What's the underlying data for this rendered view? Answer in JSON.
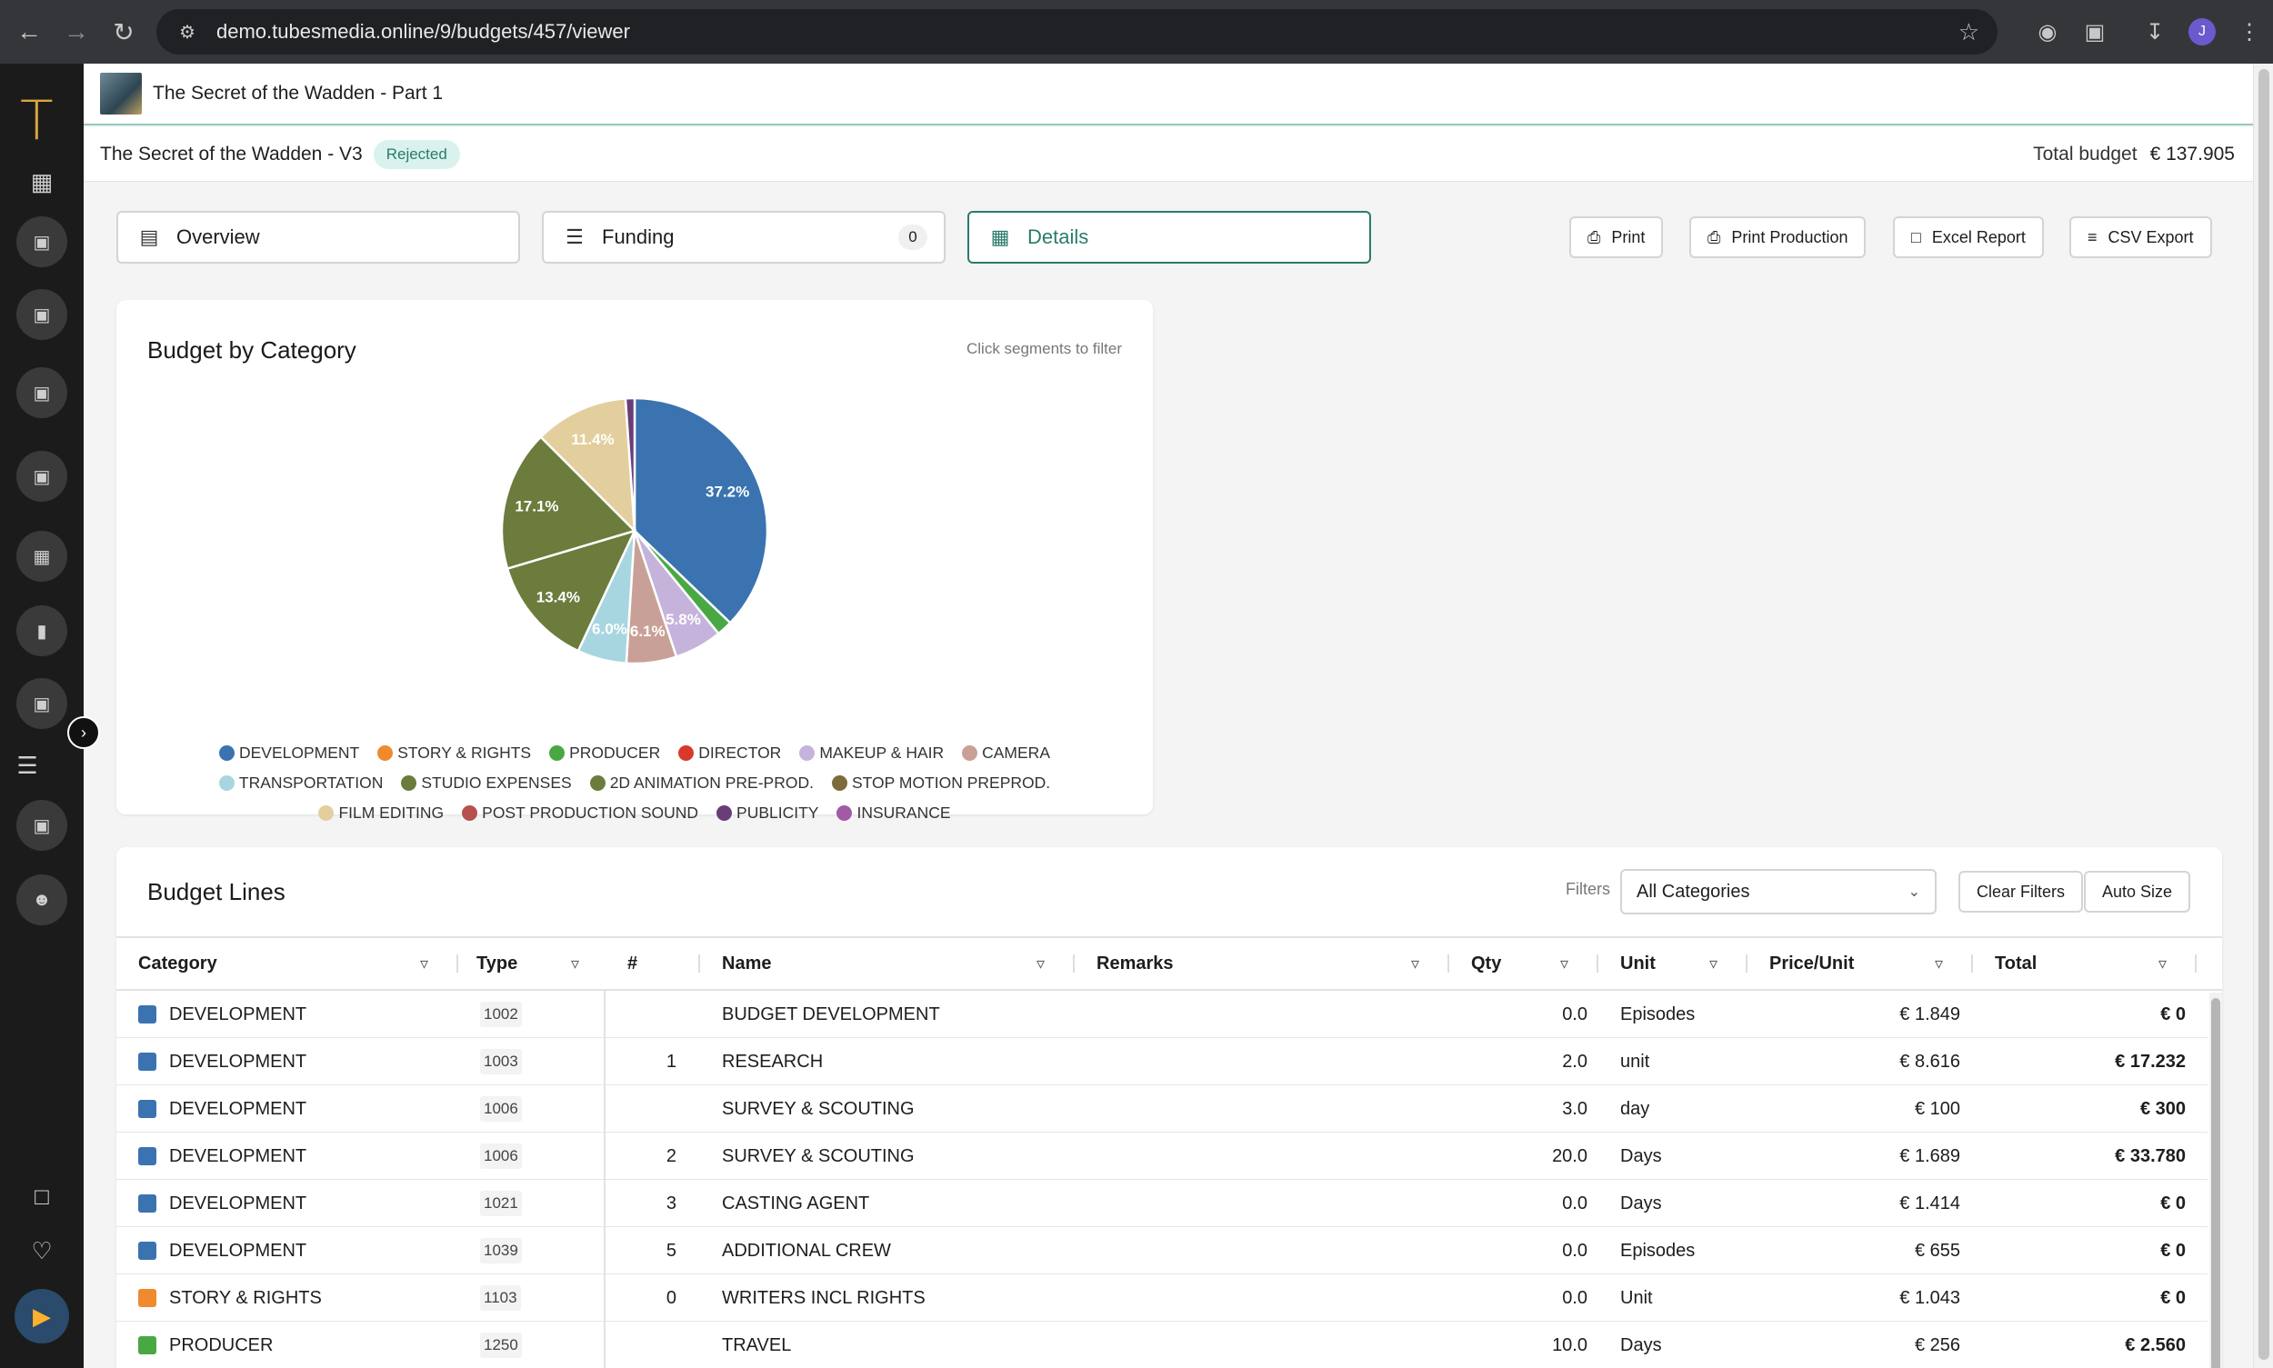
{
  "browser": {
    "url": "demo.tubesmedia.online/9/budgets/457/viewer",
    "profile_initial": "J"
  },
  "project": {
    "title": "The Secret of the Wadden - Part 1"
  },
  "version": {
    "title": "The Secret of the Wadden - V3",
    "status": "Rejected",
    "total_label": "Total budget",
    "total_value": "€ 137.905"
  },
  "tabs": [
    {
      "label": "Overview",
      "icon": "chart-icon"
    },
    {
      "label": "Funding",
      "icon": "list-icon",
      "count": "0"
    },
    {
      "label": "Details",
      "icon": "clipboard-icon"
    }
  ],
  "actions": {
    "print": "Print",
    "print_production": "Print Production",
    "excel_report": "Excel Report",
    "csv_export": "CSV Export"
  },
  "chart_card": {
    "title": "Budget by Category",
    "hint": "Click segments to filter"
  },
  "chart_data": {
    "type": "pie",
    "categories": [
      "DEVELOPMENT",
      "STORY & RIGHTS",
      "PRODUCER",
      "DIRECTOR",
      "MAKEUP & HAIR",
      "CAMERA",
      "TRANSPORTATION",
      "STUDIO EXPENSES",
      "2D ANIMATION PRE-PROD.",
      "STOP MOTION PREPROD.",
      "FILM EDITING",
      "POST PRODUCTION SOUND",
      "PUBLICITY",
      "INSURANCE"
    ],
    "values": [
      37.2,
      0,
      1.9,
      0,
      5.8,
      6.1,
      6.0,
      13.4,
      17.1,
      0,
      11.4,
      0,
      1.1,
      0
    ],
    "colors": [
      "#3b73b0",
      "#ef8a2f",
      "#4aa844",
      "#d8392b",
      "#c6b3dc",
      "#c9a097",
      "#a8d6e0",
      "#6b7c3c",
      "#6b7c3c",
      "#7c6a3a",
      "#e3cf9e",
      "#b5514f",
      "#6a3d78",
      "#a05ba6"
    ],
    "labels_shown": [
      "37.2%",
      "",
      "",
      "",
      "5.8%",
      "6.1%",
      "6.0%",
      "13.4%",
      "17.1%",
      "",
      "11.4%",
      "",
      "",
      ""
    ]
  },
  "budget_lines": {
    "title": "Budget Lines",
    "filters_label": "Filters",
    "category_select": "All Categories",
    "clear_filters": "Clear Filters",
    "auto_size": "Auto Size",
    "columns": [
      "Category",
      "Type",
      "#",
      "Name",
      "Remarks",
      "Qty",
      "Unit",
      "Price/Unit",
      "Total"
    ],
    "rows": [
      {
        "category": "DEVELOPMENT",
        "color": "#3b73b0",
        "type": "1002",
        "num": "",
        "name": "BUDGET DEVELOPMENT",
        "remarks": "",
        "qty": "0.0",
        "unit": "Episodes",
        "price": "€ 1.849",
        "total": "€ 0"
      },
      {
        "category": "DEVELOPMENT",
        "color": "#3b73b0",
        "type": "1003",
        "num": "1",
        "name": "RESEARCH",
        "remarks": "",
        "qty": "2.0",
        "unit": "unit",
        "price": "€ 8.616",
        "total": "€ 17.232"
      },
      {
        "category": "DEVELOPMENT",
        "color": "#3b73b0",
        "type": "1006",
        "num": "",
        "name": "SURVEY & SCOUTING",
        "remarks": "",
        "qty": "3.0",
        "unit": "day",
        "price": "€ 100",
        "total": "€ 300"
      },
      {
        "category": "DEVELOPMENT",
        "color": "#3b73b0",
        "type": "1006",
        "num": "2",
        "name": "SURVEY & SCOUTING",
        "remarks": "",
        "qty": "20.0",
        "unit": "Days",
        "price": "€ 1.689",
        "total": "€ 33.780"
      },
      {
        "category": "DEVELOPMENT",
        "color": "#3b73b0",
        "type": "1021",
        "num": "3",
        "name": "CASTING AGENT",
        "remarks": "",
        "qty": "0.0",
        "unit": "Days",
        "price": "€ 1.414",
        "total": "€ 0"
      },
      {
        "category": "DEVELOPMENT",
        "color": "#3b73b0",
        "type": "1039",
        "num": "5",
        "name": "ADDITIONAL CREW",
        "remarks": "",
        "qty": "0.0",
        "unit": "Episodes",
        "price": "€ 655",
        "total": "€ 0"
      },
      {
        "category": "STORY & RIGHTS",
        "color": "#ef8a2f",
        "type": "1103",
        "num": "0",
        "name": "WRITERS INCL RIGHTS",
        "remarks": "",
        "qty": "0.0",
        "unit": "Unit",
        "price": "€ 1.043",
        "total": "€ 0"
      },
      {
        "category": "PRODUCER",
        "color": "#4aa844",
        "type": "1250",
        "num": "",
        "name": "TRAVEL",
        "remarks": "",
        "qty": "10.0",
        "unit": "Days",
        "price": "€ 256",
        "total": "€ 2.560"
      }
    ]
  }
}
